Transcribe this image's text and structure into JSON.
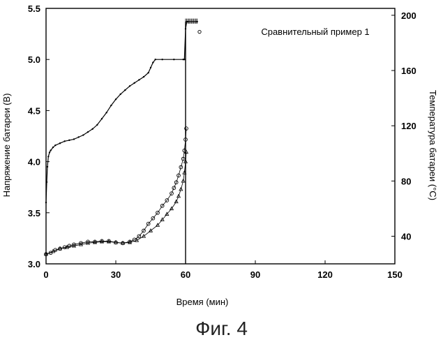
{
  "figure_caption": "Фиг. 4",
  "chart_data": {
    "type": "line",
    "annotation": "Сравнительный пример 1",
    "xlabel": "Время (мин)",
    "ylabel_left": "Напряжение батареи (В)",
    "ylabel_right": "Температура батареи (°C)",
    "xlim": [
      0,
      150
    ],
    "ylim_left": [
      3.0,
      5.5
    ],
    "ylim_right": [
      20,
      205
    ],
    "x_ticks": [
      "0",
      "30",
      "60",
      "90",
      "120",
      "150"
    ],
    "y_left_ticks": [
      "3.0",
      "3.5",
      "4.0",
      "4.5",
      "5.0",
      "5.5"
    ],
    "y_right_ticks": [
      "40",
      "80",
      "120",
      "160",
      "200"
    ],
    "grid": false,
    "series": [
      {
        "axis": "left",
        "marker": "dot",
        "x": [
          0,
          0.3,
          0.6,
          1,
          1.5,
          2,
          3,
          4,
          6,
          8,
          10,
          12,
          14,
          16,
          18,
          20,
          22,
          24,
          26,
          28,
          30,
          32,
          34,
          36,
          38,
          40,
          42,
          44,
          45,
          46,
          47,
          50,
          55,
          59,
          59.5,
          60,
          60.5,
          61,
          65
        ],
        "y": [
          3.6,
          3.8,
          3.95,
          4.05,
          4.09,
          4.11,
          4.14,
          4.16,
          4.18,
          4.2,
          4.21,
          4.22,
          4.24,
          4.26,
          4.29,
          4.32,
          4.36,
          4.42,
          4.48,
          4.55,
          4.61,
          4.66,
          4.7,
          4.74,
          4.77,
          4.8,
          4.83,
          4.87,
          4.92,
          4.97,
          5.0,
          5.0,
          5.0,
          5.0,
          5.0,
          5.3,
          5.37,
          5.37,
          5.37
        ]
      },
      {
        "axis": "right",
        "marker": "circle",
        "x": [
          0,
          2,
          4,
          6,
          8,
          10,
          12,
          15,
          18,
          21,
          24,
          27,
          30,
          33,
          36,
          38,
          40,
          42,
          44,
          46,
          48,
          50,
          52,
          54,
          55,
          56,
          57,
          58,
          59,
          59.5,
          60,
          60.3
        ],
        "y": [
          27,
          28,
          30,
          31,
          32,
          33,
          34,
          35,
          36,
          36,
          36.5,
          36.5,
          35.5,
          35,
          36,
          37.5,
          40,
          44,
          49,
          53,
          57,
          62,
          66,
          71,
          75,
          79,
          84,
          90,
          96,
          102,
          110,
          118
        ]
      },
      {
        "axis": "right",
        "marker": "triangle",
        "x": [
          0,
          3,
          6,
          9,
          12,
          15,
          18,
          21,
          24,
          27,
          30,
          33,
          36,
          39,
          42,
          45,
          48,
          50,
          52,
          54,
          56,
          57,
          58,
          59,
          59.5,
          60,
          60.3
        ],
        "y": [
          27,
          29,
          31,
          32,
          33,
          34,
          35,
          35.5,
          36,
          36,
          35.5,
          35,
          35.5,
          37,
          40,
          44,
          48,
          52,
          56,
          60,
          65,
          69,
          74,
          80,
          86,
          94,
          101
        ]
      }
    ]
  }
}
